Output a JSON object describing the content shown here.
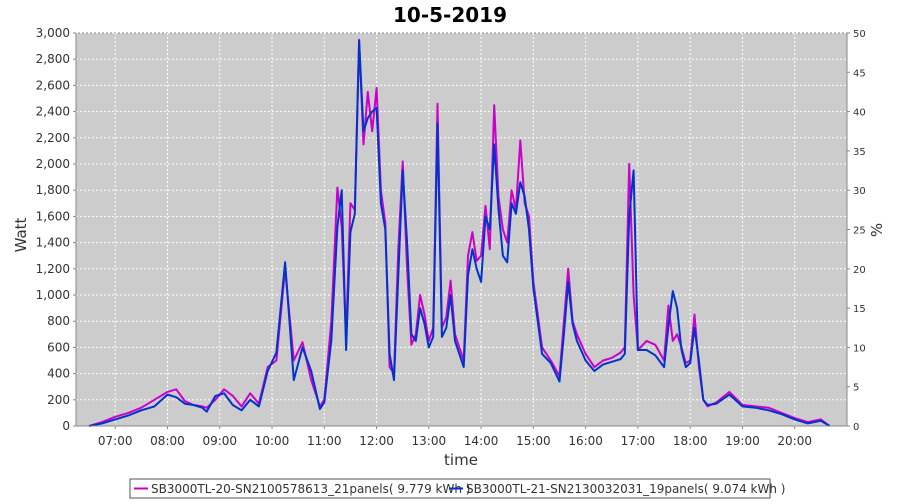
{
  "chart_data": {
    "type": "line",
    "title": "10-5-2019",
    "xlabel": "time",
    "ylabel": "Watt",
    "y2label": "%",
    "ylim": [
      0,
      3000
    ],
    "y2lim": [
      0,
      50
    ],
    "yticks": [
      0,
      200,
      400,
      600,
      800,
      1000,
      1200,
      1400,
      1600,
      1800,
      2000,
      2200,
      2400,
      2600,
      2800,
      3000
    ],
    "y2ticks": [
      0,
      5,
      10,
      15,
      20,
      25,
      30,
      35,
      40,
      45,
      50
    ],
    "ytick_labels": [
      "0",
      "200",
      "400",
      "600",
      "800",
      "1,000",
      "1,200",
      "1,400",
      "1,600",
      "1,800",
      "2,000",
      "2,200",
      "2,400",
      "2,600",
      "2,800",
      "3,000"
    ],
    "y2tick_labels": [
      "0",
      "5",
      "10",
      "15",
      "20",
      "25",
      "30",
      "35",
      "40",
      "45",
      "50"
    ],
    "xlim": [
      "06:15",
      "21:00"
    ],
    "xtick_labels": [
      "07:00",
      "08:00",
      "09:00",
      "10:00",
      "11:00",
      "12:00",
      "13:00",
      "14:00",
      "15:00",
      "16:00",
      "17:00",
      "18:00",
      "19:00",
      "20:00"
    ],
    "grid": true,
    "legend_position": "bottom",
    "plot_background": "#cccccc",
    "series": [
      {
        "name": "SB3000TL-20-SN2100578613_21panels( 9.779 kWh )",
        "color": "#cc00cc",
        "x": [
          "06:30",
          "06:45",
          "07:00",
          "07:15",
          "07:30",
          "07:45",
          "08:00",
          "08:10",
          "08:20",
          "08:30",
          "08:40",
          "08:45",
          "08:55",
          "09:05",
          "09:15",
          "09:25",
          "09:35",
          "09:45",
          "09:55",
          "10:05",
          "10:15",
          "10:25",
          "10:35",
          "10:45",
          "10:55",
          "11:00",
          "11:08",
          "11:15",
          "11:20",
          "11:25",
          "11:30",
          "11:35",
          "11:40",
          "11:45",
          "11:50",
          "11:55",
          "12:00",
          "12:05",
          "12:10",
          "12:15",
          "12:20",
          "12:25",
          "12:30",
          "12:35",
          "12:40",
          "12:45",
          "12:50",
          "12:55",
          "13:00",
          "13:05",
          "13:10",
          "13:15",
          "13:20",
          "13:25",
          "13:30",
          "13:40",
          "13:45",
          "13:50",
          "13:55",
          "14:00",
          "14:05",
          "14:10",
          "14:15",
          "14:20",
          "14:25",
          "14:30",
          "14:35",
          "14:40",
          "14:45",
          "14:50",
          "14:55",
          "15:00",
          "15:10",
          "15:20",
          "15:30",
          "15:35",
          "15:40",
          "15:45",
          "15:50",
          "16:00",
          "16:10",
          "16:20",
          "16:30",
          "16:40",
          "16:45",
          "16:50",
          "16:55",
          "17:00",
          "17:10",
          "17:20",
          "17:30",
          "17:35",
          "17:40",
          "17:45",
          "17:50",
          "17:55",
          "18:00",
          "18:05",
          "18:10",
          "18:15",
          "18:20",
          "18:30",
          "18:45",
          "19:00",
          "19:15",
          "19:30",
          "19:45",
          "20:00",
          "20:15",
          "20:30",
          "20:40"
        ],
        "values": [
          0,
          30,
          70,
          100,
          140,
          200,
          260,
          280,
          190,
          160,
          150,
          140,
          200,
          280,
          230,
          150,
          250,
          170,
          450,
          500,
          1200,
          500,
          640,
          350,
          150,
          200,
          800,
          1820,
          1520,
          680,
          1700,
          1650,
          2950,
          2150,
          2550,
          2250,
          2580,
          1800,
          1550,
          450,
          400,
          1350,
          2020,
          1200,
          620,
          700,
          1000,
          850,
          650,
          750,
          2460,
          750,
          830,
          1110,
          700,
          500,
          1300,
          1480,
          1260,
          1300,
          1680,
          1350,
          2450,
          1750,
          1500,
          1400,
          1800,
          1650,
          2180,
          1700,
          1600,
          1100,
          600,
          500,
          380,
          800,
          1200,
          800,
          700,
          550,
          450,
          500,
          520,
          560,
          600,
          2000,
          1000,
          580,
          650,
          620,
          500,
          920,
          650,
          700,
          600,
          480,
          500,
          850,
          450,
          200,
          150,
          180,
          260,
          160,
          150,
          140,
          100,
          60,
          30,
          50,
          0
        ]
      },
      {
        "name": "SB3000TL-21-SN2130032031_19panels( 9.074 kWh )",
        "color": "#0033cc",
        "x": [
          "06:30",
          "06:45",
          "07:00",
          "07:15",
          "07:30",
          "07:45",
          "08:00",
          "08:10",
          "08:20",
          "08:30",
          "08:40",
          "08:45",
          "08:55",
          "09:05",
          "09:15",
          "09:25",
          "09:35",
          "09:45",
          "09:55",
          "10:05",
          "10:15",
          "10:25",
          "10:35",
          "10:45",
          "10:55",
          "11:00",
          "11:08",
          "11:15",
          "11:20",
          "11:25",
          "11:30",
          "11:35",
          "11:40",
          "11:45",
          "11:50",
          "11:55",
          "12:00",
          "12:05",
          "12:10",
          "12:15",
          "12:20",
          "12:25",
          "12:30",
          "12:35",
          "12:40",
          "12:45",
          "12:50",
          "12:55",
          "13:00",
          "13:05",
          "13:10",
          "13:15",
          "13:20",
          "13:25",
          "13:30",
          "13:40",
          "13:45",
          "13:50",
          "13:55",
          "14:00",
          "14:05",
          "14:10",
          "14:15",
          "14:20",
          "14:25",
          "14:30",
          "14:35",
          "14:40",
          "14:45",
          "14:50",
          "14:55",
          "15:00",
          "15:10",
          "15:20",
          "15:30",
          "15:35",
          "15:40",
          "15:45",
          "15:50",
          "16:00",
          "16:10",
          "16:20",
          "16:30",
          "16:40",
          "16:45",
          "16:50",
          "16:55",
          "17:00",
          "17:10",
          "17:20",
          "17:30",
          "17:35",
          "17:40",
          "17:45",
          "17:50",
          "17:55",
          "18:00",
          "18:05",
          "18:10",
          "18:15",
          "18:20",
          "18:30",
          "18:45",
          "19:00",
          "19:15",
          "19:30",
          "19:45",
          "20:00",
          "20:15",
          "20:30",
          "20:40"
        ],
        "values": [
          0,
          20,
          50,
          80,
          120,
          150,
          240,
          220,
          170,
          160,
          140,
          110,
          230,
          250,
          160,
          120,
          200,
          150,
          420,
          560,
          1250,
          350,
          600,
          420,
          130,
          180,
          650,
          1520,
          1800,
          580,
          1480,
          1620,
          2940,
          2250,
          2350,
          2400,
          2430,
          1700,
          1500,
          550,
          350,
          1150,
          1950,
          1400,
          700,
          650,
          900,
          780,
          600,
          680,
          2310,
          680,
          750,
          1000,
          650,
          450,
          1150,
          1350,
          1200,
          1100,
          1600,
          1500,
          2150,
          1650,
          1300,
          1250,
          1700,
          1620,
          1860,
          1750,
          1500,
          1050,
          550,
          480,
          340,
          700,
          1100,
          780,
          650,
          500,
          420,
          470,
          490,
          510,
          550,
          1600,
          1950,
          580,
          580,
          540,
          450,
          760,
          1030,
          900,
          580,
          450,
          480,
          750,
          500,
          200,
          160,
          170,
          240,
          150,
          140,
          120,
          90,
          50,
          20,
          40,
          0
        ]
      }
    ]
  }
}
